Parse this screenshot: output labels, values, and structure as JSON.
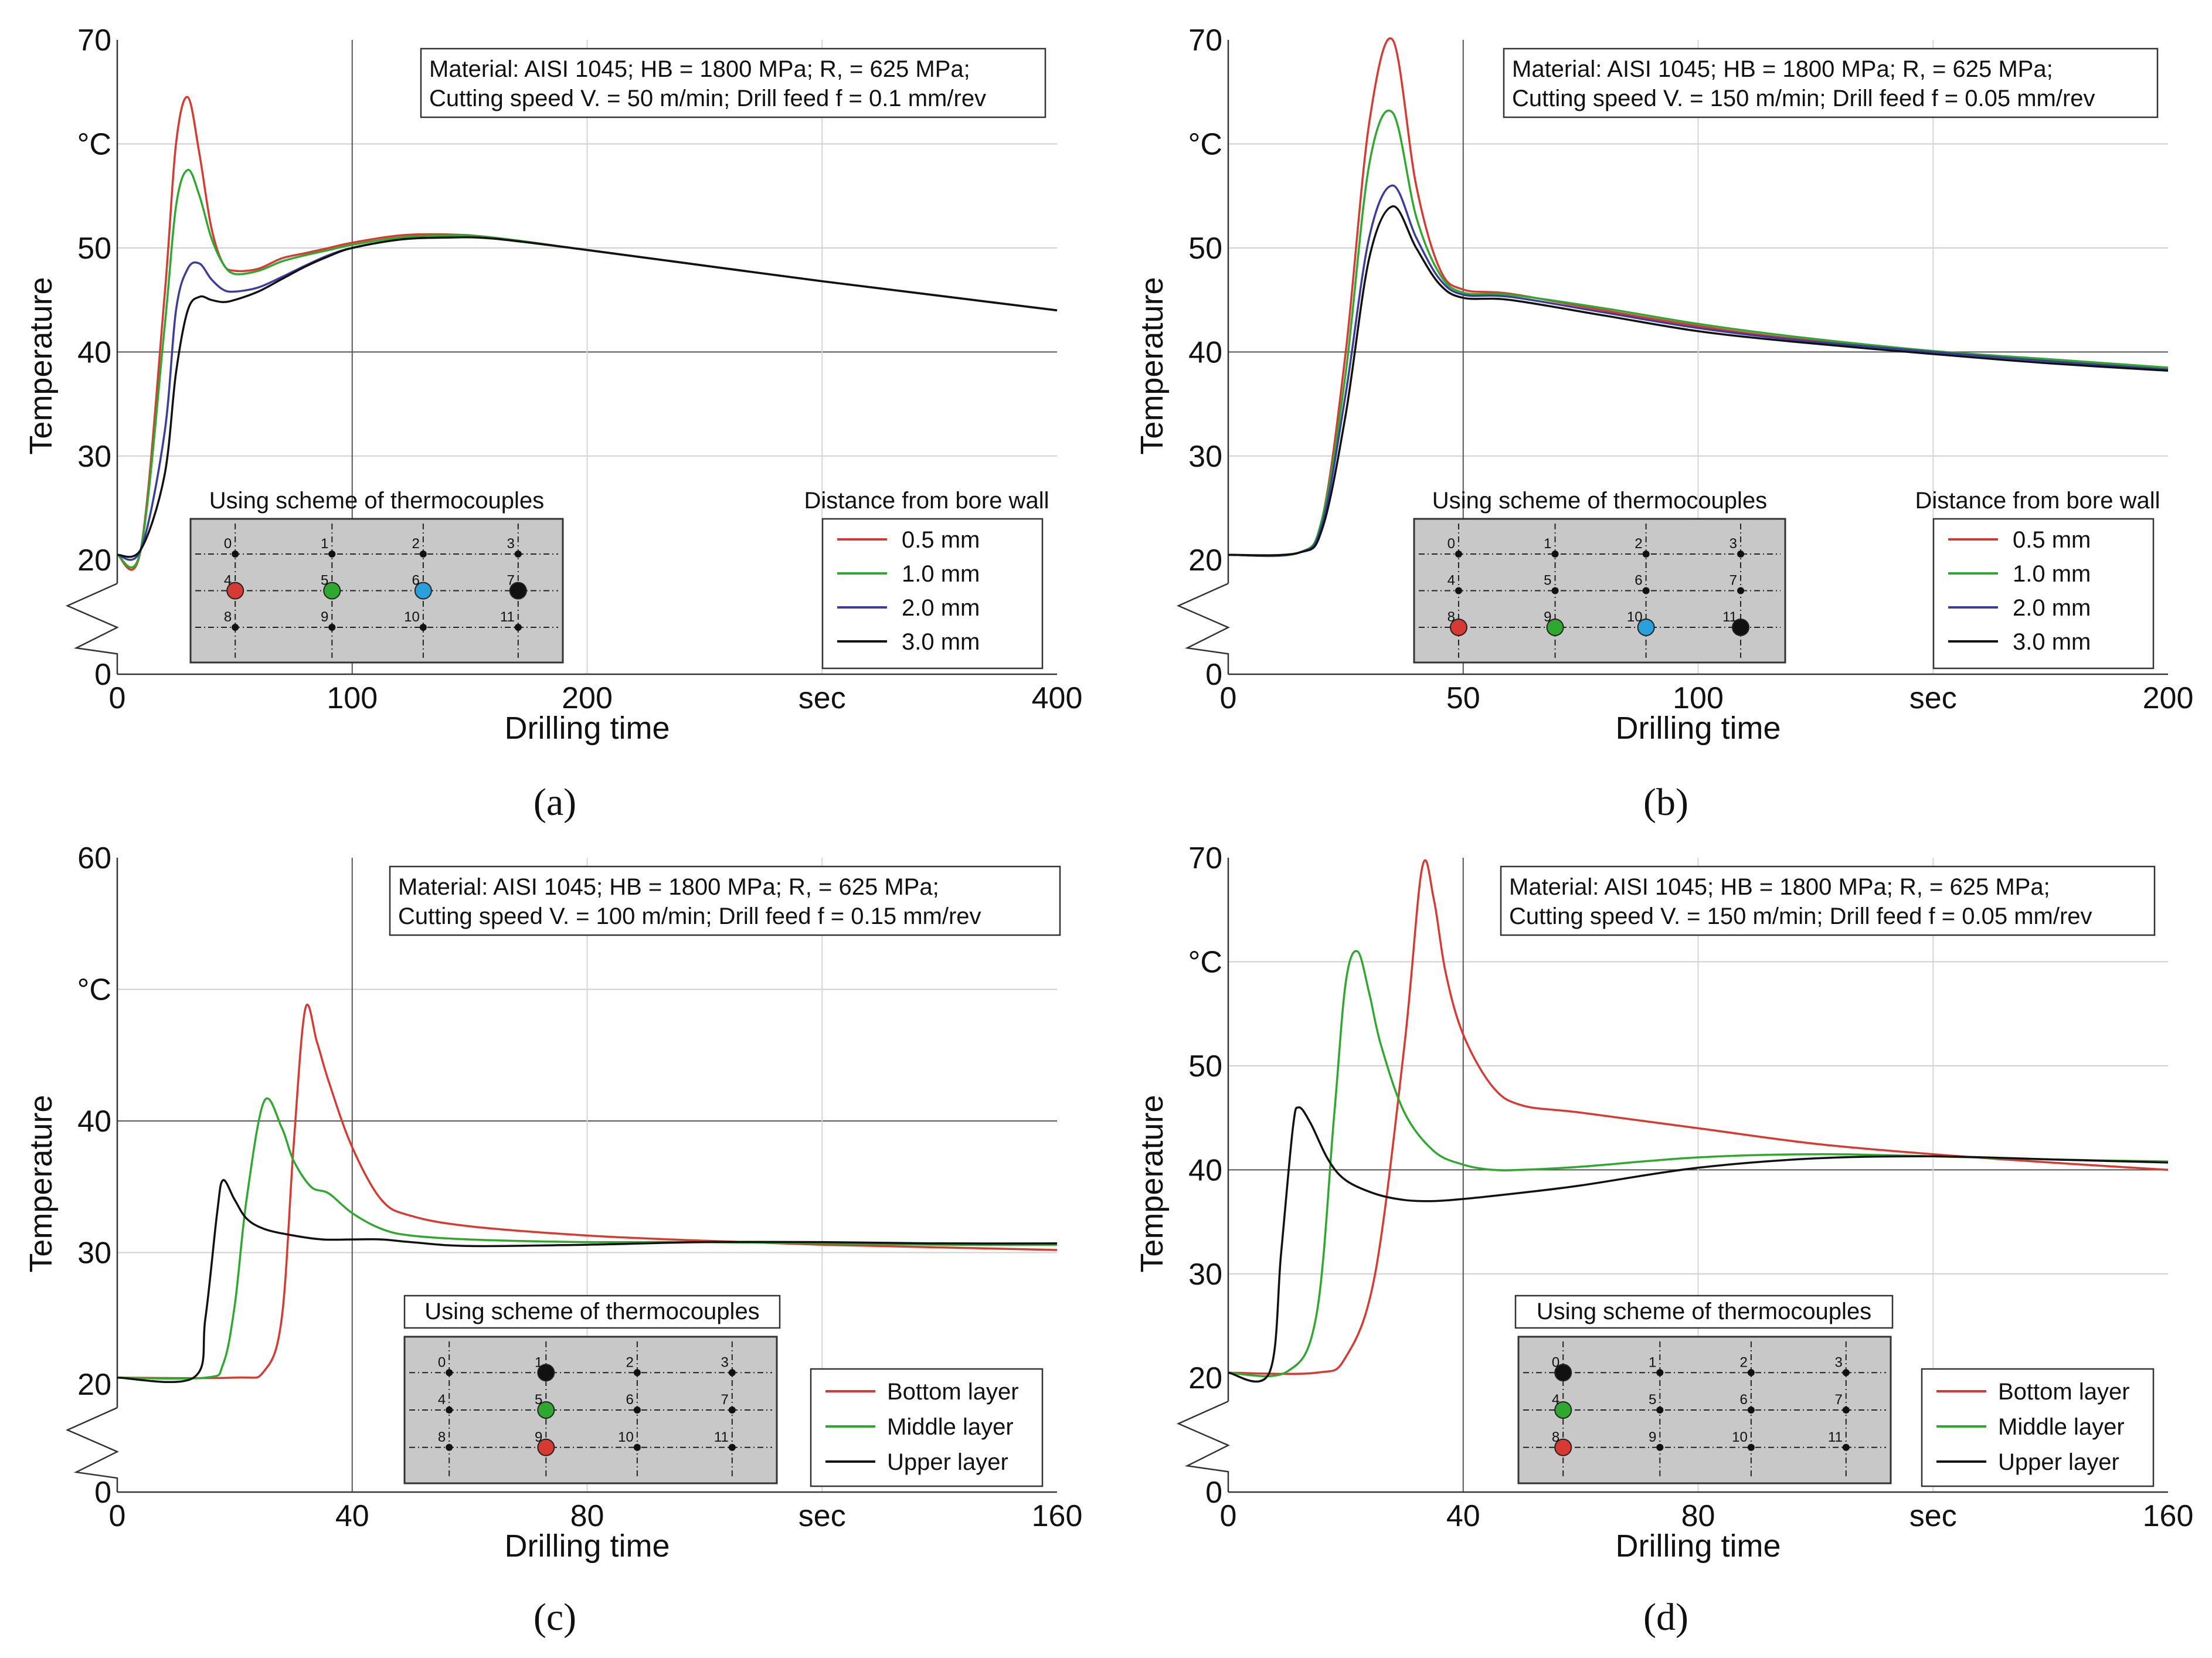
{
  "figure": {
    "y_unit": "°C",
    "x_unit": "sec",
    "ylabel": "Temperature",
    "xlabel": "Drilling time",
    "scheme_title": "Using scheme of thermocouples",
    "distance_title": "Distance from bore wall",
    "colors": {
      "red": "#d63a32",
      "green": "#2fa82f",
      "blue": "#3c3c9c",
      "black": "#111111",
      "scheme_bg": "#c8c8c8",
      "grid": "#cfcfcf"
    }
  },
  "chart_data": [
    {
      "panel_label": "(a)",
      "type": "line",
      "title": "",
      "info_lines": [
        "Material: AISI 1045; HB = 1800 MPa; R, = 625 MPa;",
        "Cutting speed V. = 50 m/min; Drill feed f = 0.1 mm/rev"
      ],
      "xlabel": "Drilling time",
      "ylabel": "Temperature",
      "xlim": [
        0,
        400
      ],
      "ylim": [
        0,
        70
      ],
      "xticks": [
        "0",
        "100",
        "200",
        "sec",
        "400"
      ],
      "yticks": [
        "0",
        "20",
        "30",
        "40",
        "50",
        "°C",
        "70"
      ],
      "legend_title": "Distance from bore wall",
      "series": [
        {
          "name": "0.5 mm",
          "color": "#d63a32",
          "x": [
            0,
            10,
            20,
            25,
            30,
            35,
            40,
            45,
            50,
            60,
            70,
            80,
            90,
            100,
            120,
            140,
            160,
            200,
            250,
            300,
            350,
            400
          ],
          "y": [
            20.5,
            21,
            45,
            60,
            64.5,
            59,
            52,
            48.5,
            47.8,
            48,
            49,
            49.5,
            50,
            50.5,
            51.2,
            51.3,
            51,
            49.8,
            48.3,
            46.8,
            45.4,
            44
          ]
        },
        {
          "name": "1.0 mm",
          "color": "#2fa82f",
          "x": [
            0,
            10,
            20,
            25,
            30,
            35,
            40,
            45,
            50,
            60,
            70,
            80,
            90,
            100,
            120,
            140,
            160,
            200,
            250,
            300,
            350,
            400
          ],
          "y": [
            20.5,
            21,
            42,
            54,
            57.5,
            55,
            51,
            48.5,
            47.5,
            47.8,
            48.7,
            49.3,
            49.8,
            50.3,
            51,
            51.2,
            51,
            49.8,
            48.3,
            46.8,
            45.4,
            44
          ]
        },
        {
          "name": "2.0 mm",
          "color": "#3c3c9c",
          "x": [
            0,
            10,
            20,
            25,
            30,
            35,
            40,
            45,
            50,
            60,
            70,
            80,
            90,
            100,
            120,
            140,
            160,
            200,
            250,
            300,
            350,
            400
          ],
          "y": [
            20.5,
            21,
            32,
            44,
            48,
            48.5,
            47,
            46,
            45.8,
            46.2,
            47.2,
            48.3,
            49.3,
            50,
            50.8,
            51,
            50.9,
            49.8,
            48.3,
            46.8,
            45.4,
            44
          ]
        },
        {
          "name": "3.0 mm",
          "color": "#111111",
          "x": [
            0,
            10,
            20,
            25,
            30,
            35,
            40,
            45,
            50,
            60,
            70,
            80,
            90,
            100,
            120,
            140,
            160,
            200,
            250,
            300,
            350,
            400
          ],
          "y": [
            20.5,
            21,
            28,
            38,
            44,
            45.3,
            45,
            44.8,
            45,
            45.8,
            47,
            48.2,
            49.2,
            50,
            50.8,
            51,
            50.9,
            49.8,
            48.3,
            46.8,
            45.4,
            44
          ]
        }
      ],
      "scheme": {
        "labels": [
          "0",
          "1",
          "2",
          "3",
          "4",
          "5",
          "6",
          "7",
          "8",
          "9",
          "10",
          "11"
        ],
        "markers": [
          {
            "index": "4",
            "color": "#d63a32"
          },
          {
            "index": "5",
            "color": "#2fa82f"
          },
          {
            "index": "6",
            "color": "#29a0dc"
          },
          {
            "index": "7",
            "color": "#111111"
          }
        ]
      }
    },
    {
      "panel_label": "(b)",
      "type": "line",
      "title": "",
      "info_lines": [
        "Material: AISI 1045; HB = 1800 MPa; R, = 625 MPa;",
        "Cutting speed V. = 150 m/min; Drill feed f = 0.05 mm/rev"
      ],
      "xlabel": "Drilling time",
      "ylabel": "Temperature",
      "xlim": [
        0,
        200
      ],
      "ylim": [
        0,
        70
      ],
      "xticks": [
        "0",
        "50",
        "100",
        "sec",
        "200"
      ],
      "yticks": [
        "0",
        "20",
        "30",
        "40",
        "50",
        "°C",
        "70"
      ],
      "legend_title": "Distance from bore wall",
      "series": [
        {
          "name": "0.5 mm",
          "color": "#d63a32",
          "x": [
            0,
            15,
            20,
            25,
            30,
            35,
            40,
            45,
            50,
            60,
            80,
            100,
            120,
            150,
            175,
            200
          ],
          "y": [
            20.5,
            20.7,
            24,
            40,
            62,
            70,
            56,
            48,
            46,
            45.6,
            44,
            42.5,
            41.3,
            40,
            39.2,
            38.4
          ]
        },
        {
          "name": "1.0 mm",
          "color": "#2fa82f",
          "x": [
            0,
            15,
            20,
            25,
            30,
            35,
            40,
            45,
            50,
            60,
            80,
            100,
            120,
            150,
            175,
            200
          ],
          "y": [
            20.5,
            20.7,
            24,
            38,
            58,
            63,
            53,
            47.5,
            45.7,
            45.5,
            44.2,
            42.7,
            41.5,
            40.1,
            39.3,
            38.5
          ]
        },
        {
          "name": "2.0 mm",
          "color": "#3c3c9c",
          "x": [
            0,
            15,
            20,
            25,
            30,
            35,
            40,
            45,
            50,
            60,
            80,
            100,
            120,
            150,
            175,
            200
          ],
          "y": [
            20.5,
            20.7,
            23.5,
            36,
            51,
            56,
            51,
            47,
            45.5,
            45.3,
            43.8,
            42.3,
            41.2,
            40,
            39.1,
            38.3
          ]
        },
        {
          "name": "3.0 mm",
          "color": "#111111",
          "x": [
            0,
            15,
            20,
            25,
            30,
            35,
            40,
            45,
            50,
            60,
            80,
            100,
            120,
            150,
            175,
            200
          ],
          "y": [
            20.5,
            20.7,
            23,
            34,
            49,
            54,
            50,
            46.5,
            45.2,
            45,
            43.5,
            42,
            41,
            39.8,
            38.9,
            38.2
          ]
        }
      ],
      "scheme": {
        "labels": [
          "0",
          "1",
          "2",
          "3",
          "4",
          "5",
          "6",
          "7",
          "8",
          "9",
          "10",
          "11"
        ],
        "markers": [
          {
            "index": "8",
            "color": "#d63a32"
          },
          {
            "index": "9",
            "color": "#2fa82f"
          },
          {
            "index": "10",
            "color": "#29a0dc"
          },
          {
            "index": "11",
            "color": "#111111"
          }
        ]
      }
    },
    {
      "panel_label": "(c)",
      "type": "line",
      "title": "",
      "info_lines": [
        "Material: AISI 1045; HB = 1800 MPa; R, = 625 MPa;",
        "Cutting speed V. = 100 m/min; Drill feed f = 0.15 mm/rev"
      ],
      "xlabel": "Drilling time",
      "ylabel": "Temperature",
      "xlim": [
        0,
        160
      ],
      "ylim": [
        0,
        60
      ],
      "xticks": [
        "0",
        "40",
        "80",
        "sec",
        "160"
      ],
      "yticks": [
        "0",
        "20",
        "30",
        "40",
        "°C",
        "60"
      ],
      "legend_title": "",
      "series": [
        {
          "name": "Bottom layer",
          "color": "#d63a32",
          "x": [
            0,
            20,
            25,
            28,
            30,
            32,
            34,
            36,
            40,
            45,
            50,
            60,
            80,
            100,
            120,
            140,
            160
          ],
          "y": [
            20.5,
            20.5,
            21,
            25,
            38,
            48.5,
            46,
            43,
            38,
            34,
            32.8,
            32,
            31.3,
            30.9,
            30.6,
            30.4,
            30.2
          ]
        },
        {
          "name": "Middle layer",
          "color": "#2fa82f",
          "x": [
            0,
            15,
            18,
            20,
            22,
            25,
            28,
            30,
            33,
            36,
            40,
            45,
            50,
            60,
            80,
            100,
            120,
            140,
            160
          ],
          "y": [
            20.5,
            20.5,
            21.5,
            26,
            34,
            41.5,
            39.5,
            37,
            35,
            34.5,
            33,
            31.8,
            31.3,
            31,
            30.8,
            30.8,
            30.7,
            30.6,
            30.6
          ]
        },
        {
          "name": "Upper layer",
          "color": "#111111",
          "x": [
            0,
            13,
            15,
            17,
            18,
            20,
            22,
            25,
            30,
            35,
            40,
            45,
            50,
            60,
            80,
            100,
            120,
            140,
            160
          ],
          "y": [
            20.5,
            20.5,
            25,
            33,
            35.5,
            34,
            32.6,
            31.8,
            31.3,
            31,
            31,
            31,
            30.8,
            30.5,
            30.6,
            30.8,
            30.8,
            30.7,
            30.7
          ]
        }
      ],
      "scheme": {
        "labels": [
          "0",
          "1",
          "2",
          "3",
          "4",
          "5",
          "6",
          "7",
          "8",
          "9",
          "10",
          "11"
        ],
        "markers": [
          {
            "index": "1",
            "color": "#111111"
          },
          {
            "index": "5",
            "color": "#2fa82f"
          },
          {
            "index": "9",
            "color": "#d63a32"
          }
        ]
      }
    },
    {
      "panel_label": "(d)",
      "type": "line",
      "title": "",
      "info_lines": [
        "Material: AISI 1045; HB = 1800 MPa; R, = 625 MPa;",
        "Cutting speed V. = 150 m/min; Drill feed f = 0.05 mm/rev"
      ],
      "xlabel": "Drilling time",
      "ylabel": "Temperature",
      "xlim": [
        0,
        160
      ],
      "ylim": [
        0,
        70
      ],
      "xticks": [
        "0",
        "40",
        "80",
        "sec",
        "160"
      ],
      "yticks": [
        "0",
        "20",
        "30",
        "40",
        "50",
        "°C",
        "70"
      ],
      "legend_title": "",
      "series": [
        {
          "name": "Bottom layer",
          "color": "#d63a32",
          "x": [
            0,
            15,
            20,
            25,
            30,
            33,
            35,
            37,
            40,
            45,
            50,
            60,
            80,
            100,
            120,
            140,
            160
          ],
          "y": [
            20.5,
            20.5,
            22,
            30,
            52,
            69,
            66,
            59,
            53,
            48,
            46.2,
            45.5,
            44,
            42.5,
            41.5,
            40.7,
            40
          ]
        },
        {
          "name": "Middle layer",
          "color": "#2fa82f",
          "x": [
            0,
            10,
            15,
            18,
            20,
            22,
            24,
            26,
            30,
            35,
            40,
            45,
            50,
            60,
            80,
            100,
            120,
            140,
            160
          ],
          "y": [
            20.5,
            20.6,
            26,
            45,
            58,
            61,
            57,
            52,
            45.5,
            41.8,
            40.5,
            40,
            40,
            40.3,
            41.2,
            41.5,
            41.3,
            41,
            40.8
          ]
        },
        {
          "name": "Upper layer",
          "color": "#111111",
          "x": [
            0,
            7,
            9,
            11,
            12,
            14,
            17,
            20,
            25,
            30,
            35,
            40,
            50,
            60,
            80,
            100,
            120,
            140,
            160
          ],
          "y": [
            20.5,
            20.5,
            32,
            44,
            46,
            44.5,
            41,
            39,
            37.7,
            37.1,
            37,
            37.2,
            37.8,
            38.5,
            40.2,
            41.1,
            41.3,
            41,
            40.7
          ]
        }
      ],
      "scheme": {
        "labels": [
          "0",
          "1",
          "2",
          "3",
          "4",
          "5",
          "6",
          "7",
          "8",
          "9",
          "10",
          "11"
        ],
        "markers": [
          {
            "index": "0",
            "color": "#111111"
          },
          {
            "index": "4",
            "color": "#2fa82f"
          },
          {
            "index": "8",
            "color": "#d63a32"
          }
        ]
      }
    }
  ]
}
